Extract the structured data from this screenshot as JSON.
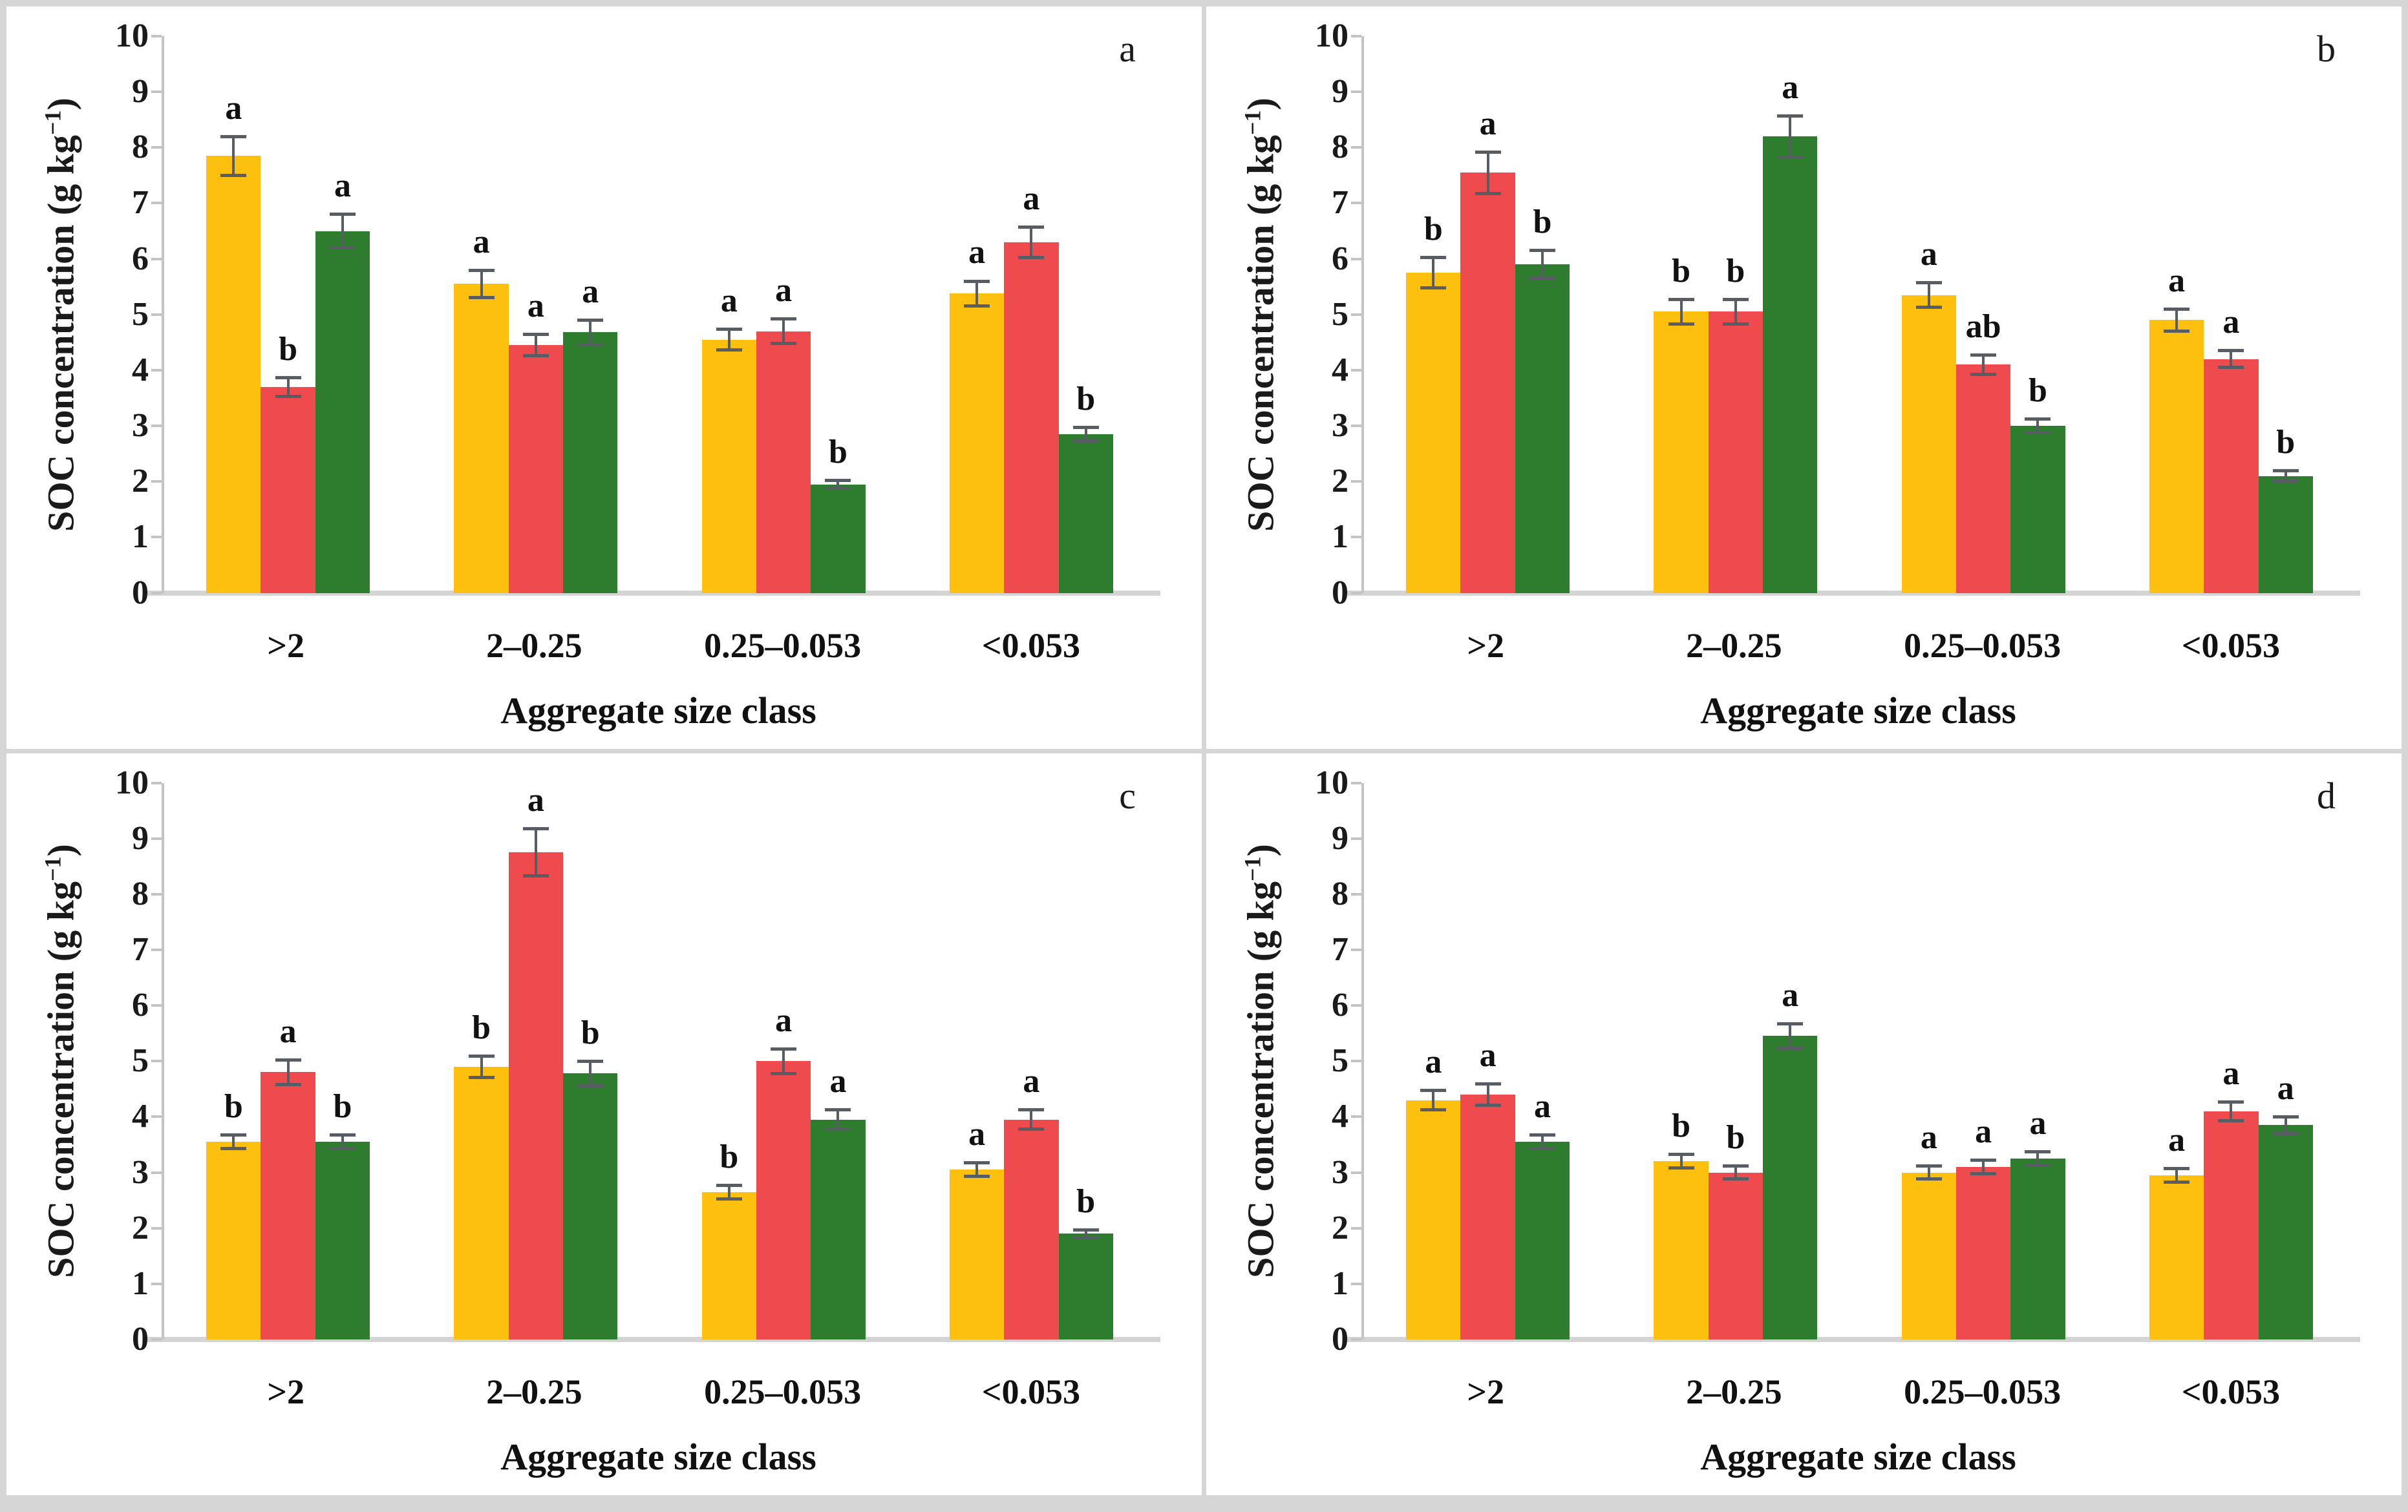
{
  "axes": {
    "y_title_prefix": "SOC concentration (g kg",
    "y_title_sup": "−1",
    "y_title_suffix": ")",
    "x_title": "Aggregate size class",
    "yticks": [
      0,
      1,
      2,
      3,
      4,
      5,
      6,
      7,
      8,
      9,
      10
    ]
  },
  "colors": {
    "yellow": "#FEC00F",
    "red": "#EF4B4F",
    "green": "#2E7D2F",
    "error_bar": "#585d64",
    "axis_line": "#c4c4c4"
  },
  "chart_data": [
    {
      "type": "bar",
      "panel_label": "a",
      "ylabel": "SOC concentration (g kg−1)",
      "xlabel": "Aggregate size class",
      "ylim": [
        0,
        10
      ],
      "categories": [
        ">2",
        "2–0.25",
        "0.25–0.053",
        "<0.053"
      ],
      "series": [
        {
          "name": "yellow",
          "color": "#FEC00F",
          "values": [
            7.85,
            5.55,
            4.55,
            5.38
          ],
          "errors": [
            0.38,
            0.27,
            0.22,
            0.25
          ],
          "letters": [
            "a",
            "a",
            "a",
            "a"
          ]
        },
        {
          "name": "red",
          "color": "#EF4B4F",
          "values": [
            3.7,
            4.45,
            4.7,
            6.3
          ],
          "errors": [
            0.2,
            0.22,
            0.25,
            0.3
          ],
          "letters": [
            "b",
            "a",
            "a",
            "a"
          ]
        },
        {
          "name": "green",
          "color": "#2E7D2F",
          "values": [
            6.5,
            4.68,
            1.95,
            2.85
          ],
          "errors": [
            0.33,
            0.25,
            0.1,
            0.15
          ],
          "letters": [
            "a",
            "a",
            "b",
            "b"
          ]
        }
      ]
    },
    {
      "type": "bar",
      "panel_label": "b",
      "ylabel": "SOC concentration (g kg−1)",
      "xlabel": "Aggregate size class",
      "ylim": [
        0,
        10
      ],
      "categories": [
        ">2",
        "2–0.25",
        "0.25–0.053",
        "<0.053"
      ],
      "series": [
        {
          "name": "yellow",
          "color": "#FEC00F",
          "values": [
            5.75,
            5.05,
            5.35,
            4.9
          ],
          "errors": [
            0.3,
            0.25,
            0.25,
            0.23
          ],
          "letters": [
            "b",
            "b",
            "a",
            "a"
          ]
        },
        {
          "name": "red",
          "color": "#EF4B4F",
          "values": [
            7.55,
            5.05,
            4.1,
            4.2
          ],
          "errors": [
            0.4,
            0.25,
            0.2,
            0.18
          ],
          "letters": [
            "a",
            "b",
            "ab",
            "a"
          ]
        },
        {
          "name": "green",
          "color": "#2E7D2F",
          "values": [
            5.9,
            8.2,
            3.0,
            2.1
          ],
          "errors": [
            0.28,
            0.4,
            0.15,
            0.12
          ],
          "letters": [
            "b",
            "a",
            "b",
            "b"
          ]
        }
      ]
    },
    {
      "type": "bar",
      "panel_label": "c",
      "ylabel": "SOC concentration (g kg−1)",
      "xlabel": "Aggregate size class",
      "ylim": [
        0,
        10
      ],
      "categories": [
        ">2",
        "2–0.25",
        "0.25–0.053",
        "<0.053"
      ],
      "series": [
        {
          "name": "yellow",
          "color": "#FEC00F",
          "values": [
            3.55,
            4.9,
            2.65,
            3.05
          ],
          "errors": [
            0.15,
            0.22,
            0.15,
            0.15
          ],
          "letters": [
            "b",
            "b",
            "b",
            "a"
          ]
        },
        {
          "name": "red",
          "color": "#EF4B4F",
          "values": [
            4.8,
            8.75,
            5.0,
            3.95
          ],
          "errors": [
            0.25,
            0.45,
            0.25,
            0.2
          ],
          "letters": [
            "a",
            "a",
            "a",
            "a"
          ]
        },
        {
          "name": "green",
          "color": "#2E7D2F",
          "values": [
            3.55,
            4.78,
            3.95,
            1.9
          ],
          "errors": [
            0.15,
            0.25,
            0.2,
            0.1
          ],
          "letters": [
            "b",
            "b",
            "a",
            "b"
          ]
        }
      ]
    },
    {
      "type": "bar",
      "panel_label": "d",
      "ylabel": "SOC concentration (g kg−1)",
      "xlabel": "Aggregate size class",
      "ylim": [
        0,
        10
      ],
      "categories": [
        ">2",
        "2–0.25",
        "0.25–0.053",
        "<0.053"
      ],
      "series": [
        {
          "name": "yellow",
          "color": "#FEC00F",
          "values": [
            4.3,
            3.2,
            3.0,
            2.95
          ],
          "errors": [
            0.2,
            0.15,
            0.15,
            0.15
          ],
          "letters": [
            "a",
            "b",
            "a",
            "a"
          ]
        },
        {
          "name": "red",
          "color": "#EF4B4F",
          "values": [
            4.4,
            3.0,
            3.1,
            4.1
          ],
          "errors": [
            0.22,
            0.15,
            0.15,
            0.2
          ],
          "letters": [
            "a",
            "b",
            "a",
            "a"
          ]
        },
        {
          "name": "green",
          "color": "#2E7D2F",
          "values": [
            3.55,
            5.45,
            3.25,
            3.85
          ],
          "errors": [
            0.15,
            0.25,
            0.15,
            0.18
          ],
          "letters": [
            "a",
            "a",
            "a",
            "a"
          ]
        }
      ]
    }
  ]
}
